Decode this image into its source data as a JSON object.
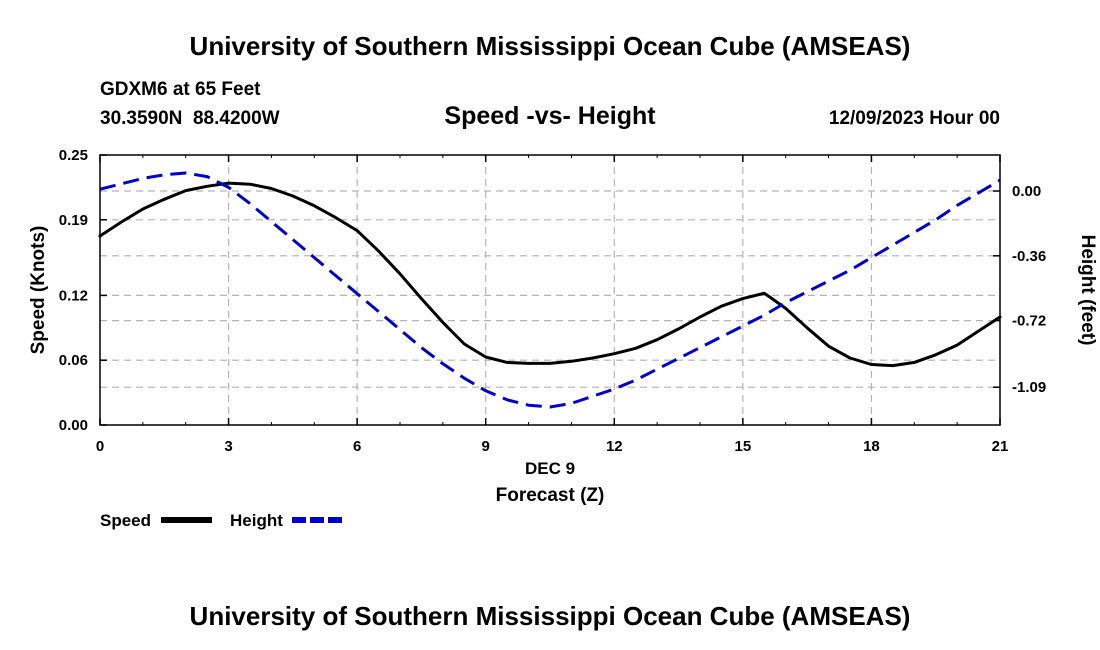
{
  "header": {
    "title": "University of Southern Mississippi Ocean Cube (AMSEAS)",
    "station": "GDXM6 at 65 Feet",
    "coords": "30.3590N  88.4200W",
    "subtitle": "Speed -vs- Height",
    "date": "12/09/2023 Hour 00"
  },
  "footer": {
    "title": "University of Southern Mississippi Ocean Cube (AMSEAS)"
  },
  "chart_data": {
    "type": "line",
    "title": "Speed -vs- Height",
    "xlabel_line1": "DEC 9",
    "xlabel": "Forecast (Z)",
    "ylabel": "Speed (Knots)",
    "y2label": "Height (feet)",
    "xlim": [
      0,
      21
    ],
    "ylim": [
      0,
      0.25
    ],
    "y2lim": [
      -1.3,
      0.2
    ],
    "x_ticks": [
      0,
      3,
      6,
      9,
      12,
      15,
      18,
      21
    ],
    "x_tick_labels": [
      "0",
      "3",
      "6",
      "9",
      "12",
      "15",
      "18",
      "21"
    ],
    "y_ticks": [
      0,
      0.06,
      0.12,
      0.19,
      0.25
    ],
    "y_tick_labels": [
      "0.00",
      "0.06",
      "0.12",
      "0.19",
      "0.25"
    ],
    "y2_ticks": [
      0,
      -0.36,
      -0.72,
      -1.09
    ],
    "y2_tick_labels": [
      "0.00",
      "-0.36",
      "-0.72",
      "-1.09"
    ],
    "grid": true,
    "series": [
      {
        "name": "Speed",
        "axis": "left",
        "color": "#000000",
        "style": "solid",
        "x": [
          0,
          0.5,
          1,
          1.5,
          2,
          2.5,
          3,
          3.5,
          4,
          4.5,
          5,
          5.5,
          6,
          6.5,
          7,
          7.5,
          8,
          8.5,
          9,
          9.5,
          10,
          10.5,
          11,
          11.5,
          12,
          12.5,
          13,
          13.5,
          14,
          14.5,
          15,
          15.5,
          16,
          16.5,
          17,
          17.5,
          18,
          18.5,
          19,
          19.5,
          20,
          20.5,
          21
        ],
        "values": [
          0.175,
          0.188,
          0.2,
          0.209,
          0.217,
          0.221,
          0.224,
          0.223,
          0.219,
          0.212,
          0.203,
          0.192,
          0.18,
          0.161,
          0.14,
          0.117,
          0.095,
          0.075,
          0.063,
          0.058,
          0.057,
          0.057,
          0.059,
          0.062,
          0.066,
          0.071,
          0.079,
          0.089,
          0.1,
          0.11,
          0.117,
          0.122,
          0.108,
          0.09,
          0.073,
          0.062,
          0.056,
          0.055,
          0.058,
          0.065,
          0.074,
          0.087,
          0.1
        ]
      },
      {
        "name": "Height",
        "axis": "right",
        "color": "#0000cc",
        "style": "dashed",
        "x": [
          0,
          0.5,
          1,
          1.5,
          2,
          2.5,
          3,
          3.5,
          4,
          4.5,
          5,
          5.5,
          6,
          6.5,
          7,
          7.5,
          8,
          8.5,
          9,
          9.5,
          10,
          10.5,
          11,
          11.5,
          12,
          12.5,
          13,
          13.5,
          14,
          14.5,
          15,
          15.5,
          16,
          16.5,
          17,
          17.5,
          18,
          18.5,
          19,
          19.5,
          20,
          20.5,
          21
        ],
        "values": [
          0.01,
          0.04,
          0.07,
          0.09,
          0.1,
          0.08,
          0.02,
          -0.07,
          -0.17,
          -0.27,
          -0.37,
          -0.47,
          -0.57,
          -0.67,
          -0.77,
          -0.87,
          -0.96,
          -1.04,
          -1.11,
          -1.16,
          -1.19,
          -1.2,
          -1.18,
          -1.14,
          -1.1,
          -1.05,
          -0.99,
          -0.93,
          -0.87,
          -0.81,
          -0.75,
          -0.69,
          -0.62,
          -0.56,
          -0.5,
          -0.44,
          -0.37,
          -0.3,
          -0.23,
          -0.16,
          -0.08,
          -0.01,
          0.06
        ]
      }
    ]
  },
  "legend": {
    "speed_label": "Speed",
    "height_label": "Height",
    "speed_color": "#000000",
    "height_color": "#0000cc"
  }
}
